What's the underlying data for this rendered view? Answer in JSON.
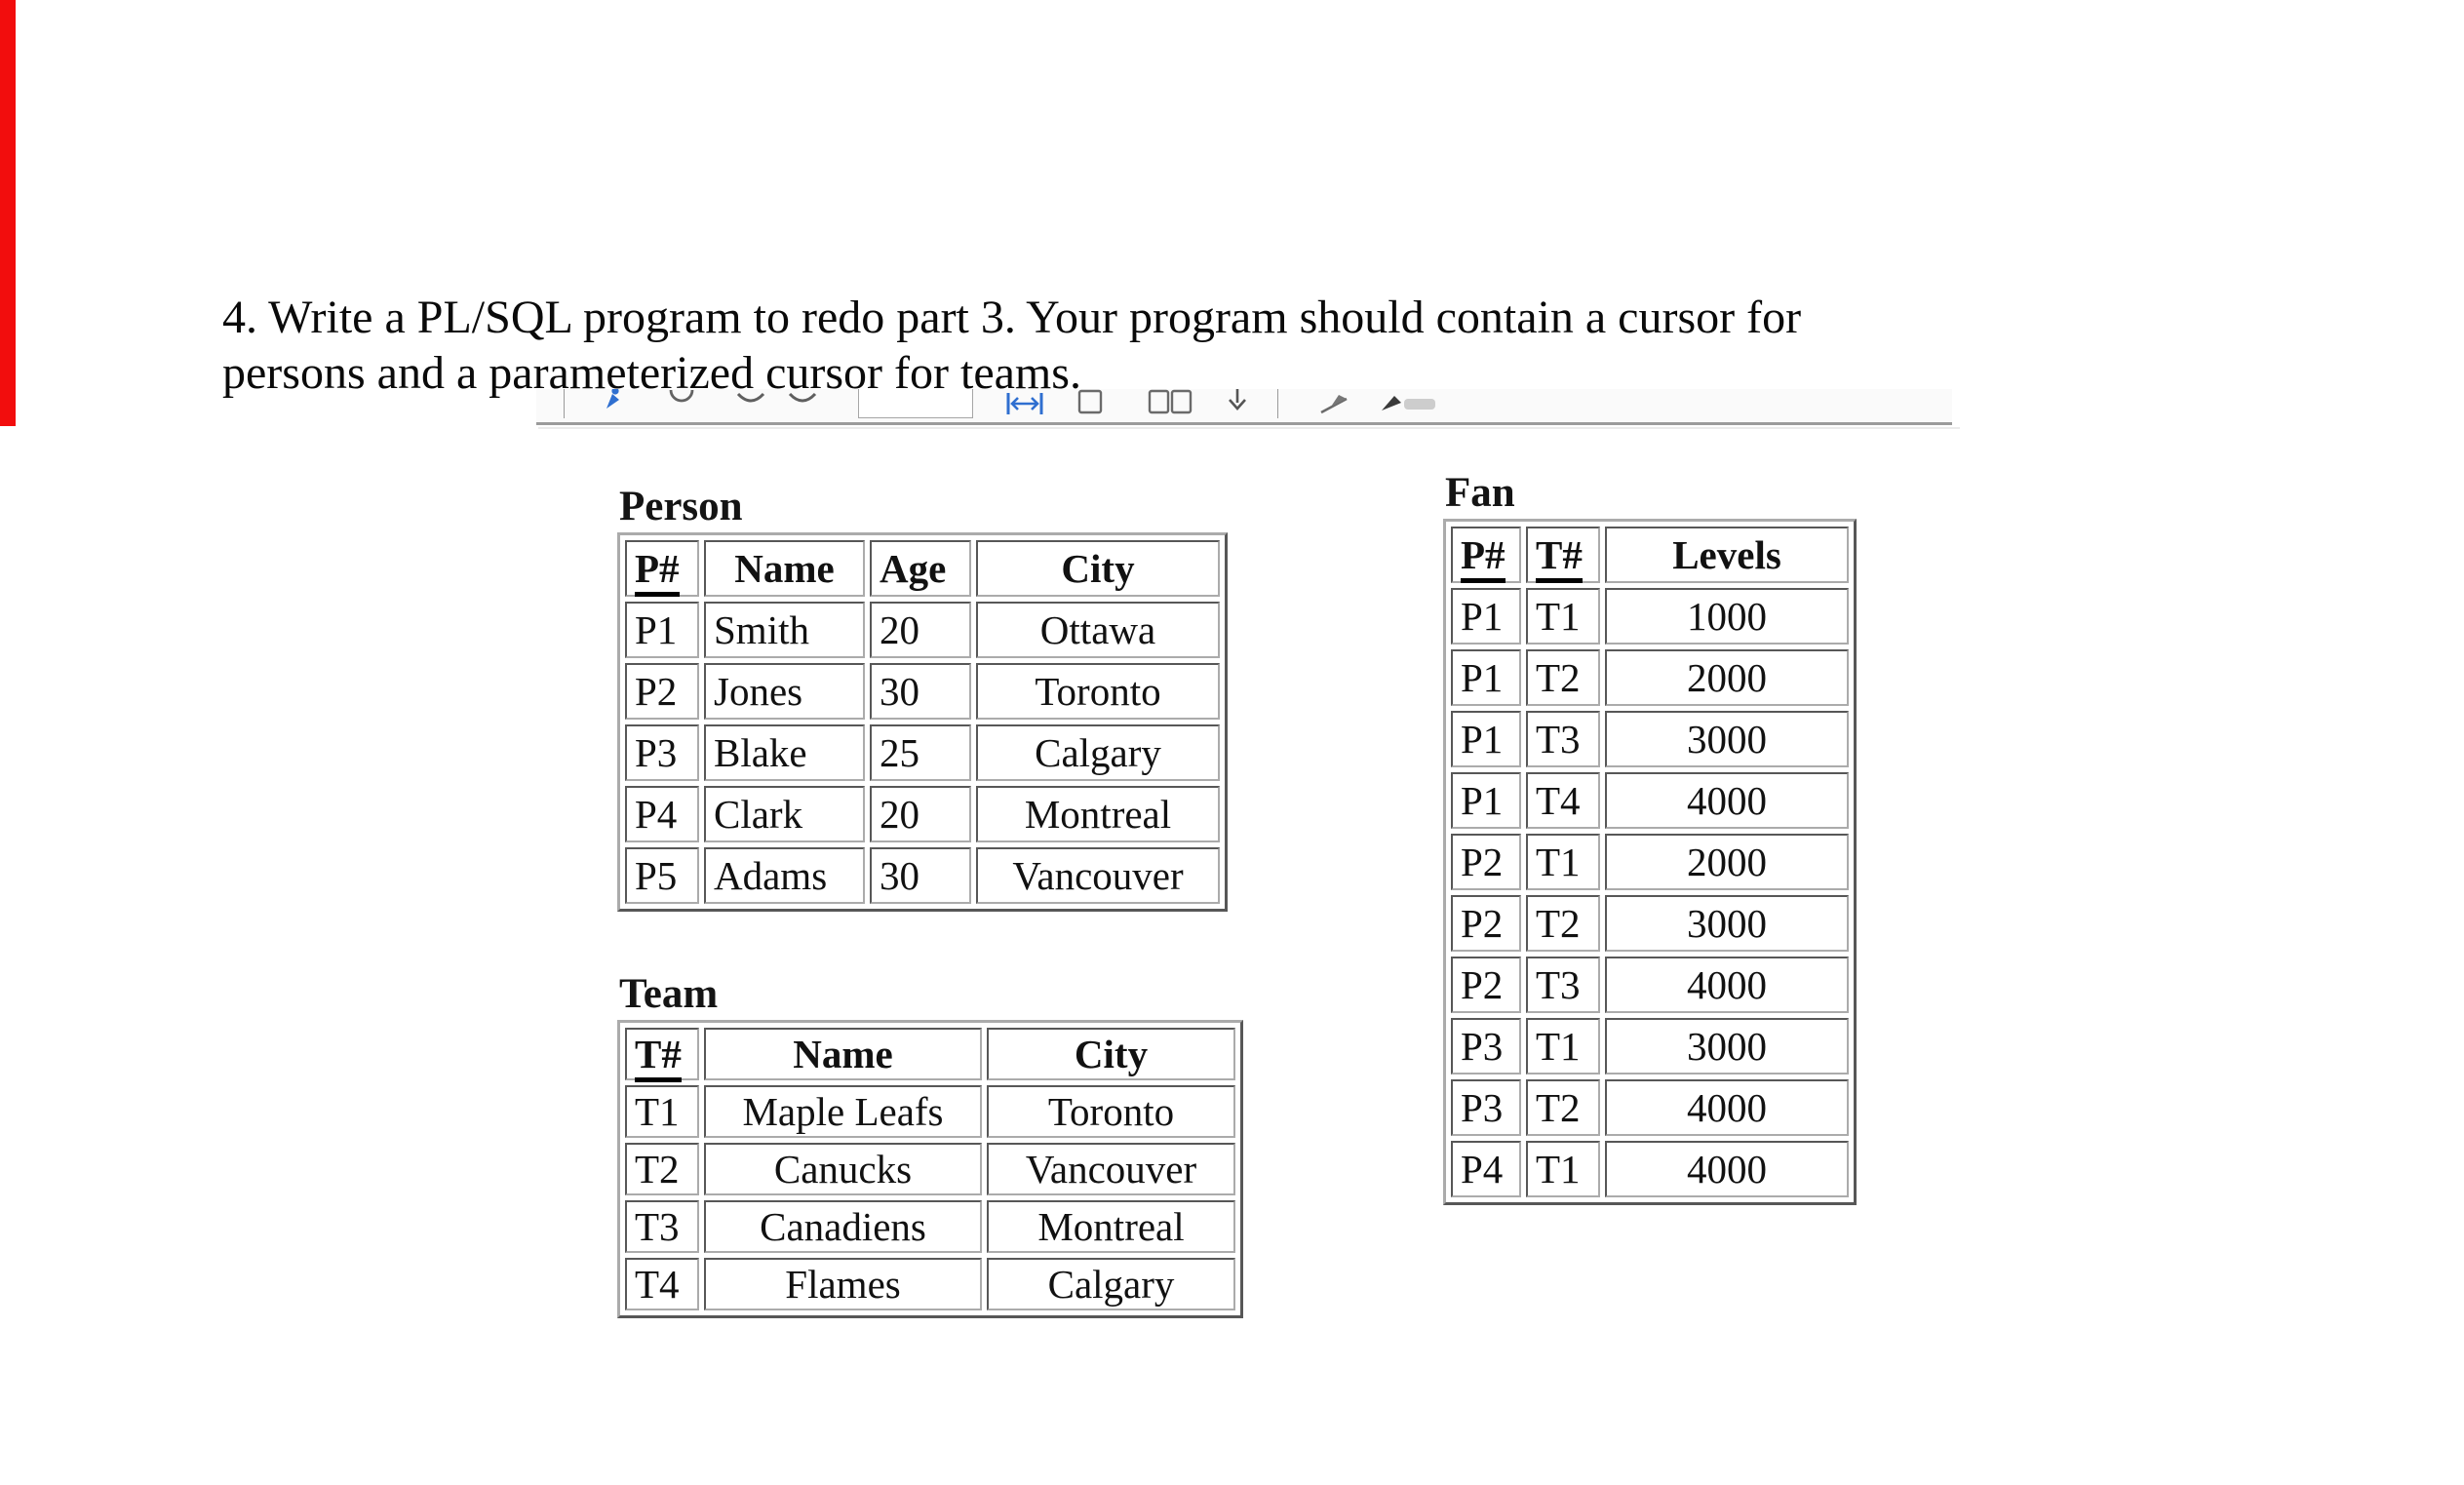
{
  "page": {
    "background": "#ffffff",
    "red_bar_color": "#f20d0d"
  },
  "question": {
    "lines": [
      "4. Write a PL/SQL program to redo part 3. Your program should contain a cursor for",
      "persons and a parameterized cursor for teams."
    ]
  },
  "toolbar": {
    "icons": [
      "pin",
      "refresh",
      "chevron-down",
      "chevron-down",
      "page-input",
      "fit-width",
      "single-page",
      "two-page-view",
      "arrow-down",
      "flag",
      "pen-highlighter"
    ],
    "page_input_value": "",
    "accent_blue": "#2f6fd0",
    "icon_gray": "#636363"
  },
  "tables": {
    "person": {
      "title": "Person",
      "headers": [
        "P#",
        "Name",
        "Age",
        "City"
      ],
      "key_headers": [
        "P#"
      ],
      "rows": [
        [
          "P1",
          "Smith",
          "20",
          "Ottawa"
        ],
        [
          "P2",
          "Jones",
          "30",
          "Toronto"
        ],
        [
          "P3",
          "Blake",
          "25",
          "Calgary"
        ],
        [
          "P4",
          "Clark",
          "20",
          "Montreal"
        ],
        [
          "P5",
          "Adams",
          "30",
          "Vancouver"
        ]
      ]
    },
    "team": {
      "title": "Team",
      "headers": [
        "T#",
        "Name",
        "City"
      ],
      "key_headers": [
        "T#"
      ],
      "rows": [
        [
          "T1",
          "Maple Leafs",
          "Toronto"
        ],
        [
          "T2",
          "Canucks",
          "Vancouver"
        ],
        [
          "T3",
          "Canadiens",
          "Montreal"
        ],
        [
          "T4",
          "Flames",
          "Calgary"
        ]
      ]
    },
    "fan": {
      "title": "Fan",
      "headers": [
        "P#",
        "T#",
        "Levels"
      ],
      "key_headers": [
        "P#",
        "T#"
      ],
      "rows": [
        [
          "P1",
          "T1",
          "1000"
        ],
        [
          "P1",
          "T2",
          "2000"
        ],
        [
          "P1",
          "T3",
          "3000"
        ],
        [
          "P1",
          "T4",
          "4000"
        ],
        [
          "P2",
          "T1",
          "2000"
        ],
        [
          "P2",
          "T2",
          "3000"
        ],
        [
          "P2",
          "T3",
          "4000"
        ],
        [
          "P3",
          "T1",
          "3000"
        ],
        [
          "P3",
          "T2",
          "4000"
        ],
        [
          "P4",
          "T1",
          "4000"
        ]
      ]
    }
  }
}
